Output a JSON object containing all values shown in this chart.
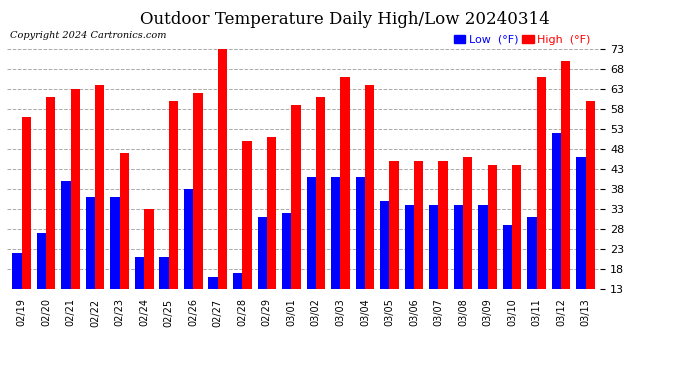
{
  "title": "Outdoor Temperature Daily High/Low 20240314",
  "copyright": "Copyright 2024 Cartronics.com",
  "dates": [
    "02/19",
    "02/20",
    "02/21",
    "02/22",
    "02/23",
    "02/24",
    "02/25",
    "02/26",
    "02/27",
    "02/28",
    "02/29",
    "03/01",
    "03/02",
    "03/03",
    "03/04",
    "03/05",
    "03/06",
    "03/07",
    "03/08",
    "03/09",
    "03/10",
    "03/11",
    "03/12",
    "03/13"
  ],
  "high": [
    56,
    61,
    63,
    64,
    47,
    33,
    60,
    62,
    73,
    50,
    51,
    59,
    61,
    66,
    64,
    45,
    45,
    45,
    46,
    44,
    44,
    66,
    70,
    60
  ],
  "low": [
    22,
    27,
    40,
    36,
    36,
    21,
    21,
    38,
    16,
    17,
    31,
    32,
    41,
    41,
    41,
    35,
    34,
    34,
    34,
    34,
    29,
    31,
    52,
    46
  ],
  "high_color": "#ff0000",
  "low_color": "#0000ff",
  "ymin": 13.0,
  "ylim": [
    13.0,
    73.0
  ],
  "yticks": [
    13.0,
    18.0,
    23.0,
    28.0,
    33.0,
    38.0,
    43.0,
    48.0,
    53.0,
    58.0,
    63.0,
    68.0,
    73.0
  ],
  "bg_color": "#ffffff",
  "grid_color": "#aaaaaa",
  "title_fontsize": 12,
  "legend_fontsize": 8,
  "copyright_fontsize": 7,
  "bar_width": 0.38
}
